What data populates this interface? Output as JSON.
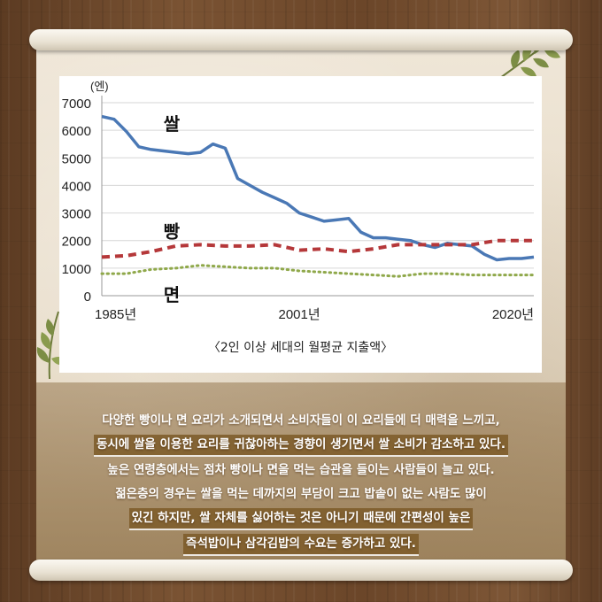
{
  "chart_data": {
    "type": "line",
    "yunit": "(엔)",
    "yticks": [
      0,
      1000,
      2000,
      3000,
      4000,
      5000,
      6000,
      7000
    ],
    "ylim": [
      0,
      7000
    ],
    "xlim": [
      1985,
      2020
    ],
    "xtick_labels": [
      {
        "value": 1985,
        "label": "1985년"
      },
      {
        "value": 2001,
        "label": "2001년"
      },
      {
        "value": 2020,
        "label": "2020년"
      }
    ],
    "grid": true,
    "series": [
      {
        "name": "쌀",
        "color": "#4a78b5",
        "style": "solid",
        "label_at": {
          "x": 1990,
          "y": 6200
        },
        "points": [
          [
            1985,
            6500
          ],
          [
            1986,
            6400
          ],
          [
            1987,
            5950
          ],
          [
            1988,
            5400
          ],
          [
            1989,
            5300
          ],
          [
            1990,
            5250
          ],
          [
            1991,
            5200
          ],
          [
            1992,
            5150
          ],
          [
            1993,
            5200
          ],
          [
            1994,
            5500
          ],
          [
            1995,
            5350
          ],
          [
            1996,
            4250
          ],
          [
            1997,
            4000
          ],
          [
            1998,
            3750
          ],
          [
            1999,
            3550
          ],
          [
            2000,
            3350
          ],
          [
            2001,
            3000
          ],
          [
            2002,
            2850
          ],
          [
            2003,
            2700
          ],
          [
            2004,
            2750
          ],
          [
            2005,
            2800
          ],
          [
            2006,
            2300
          ],
          [
            2007,
            2100
          ],
          [
            2008,
            2100
          ],
          [
            2009,
            2050
          ],
          [
            2010,
            2000
          ],
          [
            2011,
            1850
          ],
          [
            2012,
            1750
          ],
          [
            2013,
            1900
          ],
          [
            2014,
            1850
          ],
          [
            2015,
            1800
          ],
          [
            2016,
            1500
          ],
          [
            2017,
            1300
          ],
          [
            2018,
            1350
          ],
          [
            2019,
            1350
          ],
          [
            2020,
            1400
          ]
        ]
      },
      {
        "name": "빵",
        "color": "#b5383a",
        "style": "dashed",
        "label_at": {
          "x": 1990,
          "y": 2300
        },
        "points": [
          [
            1985,
            1400
          ],
          [
            1987,
            1450
          ],
          [
            1989,
            1600
          ],
          [
            1991,
            1800
          ],
          [
            1993,
            1850
          ],
          [
            1995,
            1800
          ],
          [
            1997,
            1800
          ],
          [
            1999,
            1850
          ],
          [
            2001,
            1650
          ],
          [
            2003,
            1700
          ],
          [
            2005,
            1600
          ],
          [
            2007,
            1700
          ],
          [
            2009,
            1850
          ],
          [
            2011,
            1850
          ],
          [
            2013,
            1850
          ],
          [
            2015,
            1850
          ],
          [
            2017,
            2000
          ],
          [
            2019,
            2000
          ],
          [
            2020,
            2000
          ]
        ]
      },
      {
        "name": "면",
        "color": "#8fa84a",
        "style": "dotted",
        "label_at": {
          "x": 1990,
          "y": 0
        },
        "points": [
          [
            1985,
            800
          ],
          [
            1987,
            800
          ],
          [
            1989,
            950
          ],
          [
            1991,
            1000
          ],
          [
            1993,
            1100
          ],
          [
            1995,
            1050
          ],
          [
            1997,
            1000
          ],
          [
            1999,
            1000
          ],
          [
            2001,
            900
          ],
          [
            2003,
            850
          ],
          [
            2005,
            800
          ],
          [
            2007,
            750
          ],
          [
            2009,
            700
          ],
          [
            2011,
            800
          ],
          [
            2013,
            800
          ],
          [
            2015,
            750
          ],
          [
            2017,
            750
          ],
          [
            2020,
            750
          ]
        ]
      }
    ]
  },
  "caption": "〈2인 이상 세대의 월평균 지출액〉",
  "description_lines": [
    "다양한 빵이나 면 요리가 소개되면서 소비자들이 이 요리들에 더 매력을 느끼고,",
    "동시에 쌀을 이용한 요리를 귀찮아하는 경향이 생기면서 쌀 소비가 감소하고 있다.",
    "높은 연령층에서는 점차 빵이나 면을 먹는 습관을 들이는 사람들이 늘고 있다.",
    "젊은층의 경우는 쌀을 먹는 데까지의 부담이 크고 밥솥이 없는 사람도 많이",
    "있긴 하지만, 쌀 자체를 싫어하는 것은 아니기 때문에 간편성이 높은",
    "즉석밥이나 삼각김밥의 수요는 증가하고 있다."
  ]
}
